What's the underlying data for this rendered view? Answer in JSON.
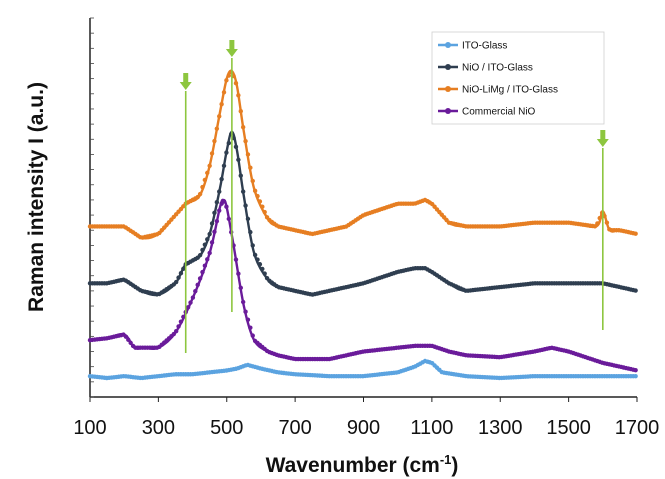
{
  "chart_data": {
    "type": "line",
    "title": "",
    "xlabel": "Wavenumber (cm",
    "xlabel_sup": "-1",
    "xlabel_close": ")",
    "ylabel": "Raman intensity I (a.u.)",
    "xlim": [
      100,
      1700
    ],
    "ylim": [
      0,
      100
    ],
    "x_ticks": [
      100,
      300,
      500,
      700,
      900,
      1100,
      1300,
      1500,
      1700
    ],
    "y_tick_labels_shown": false,
    "grid": false,
    "legend_position": "top-right",
    "series": [
      {
        "name": "ITO-Glass",
        "color": "#5ba3e0",
        "marker": "circle",
        "x": [
          100,
          150,
          200,
          250,
          300,
          350,
          400,
          450,
          500,
          530,
          560,
          600,
          650,
          700,
          800,
          900,
          1000,
          1050,
          1080,
          1100,
          1130,
          1200,
          1300,
          1400,
          1500,
          1600,
          1700
        ],
        "y": [
          5.5,
          5,
          5.5,
          5,
          5.5,
          6,
          6,
          6.5,
          7,
          7.5,
          8.5,
          7.5,
          6.5,
          6,
          5.5,
          5.5,
          6.5,
          8,
          9.5,
          9,
          6.5,
          5.5,
          5,
          5.5,
          5.5,
          5.5,
          5.5
        ]
      },
      {
        "name": "NiO / ITO-Glass",
        "color": "#2f3e50",
        "marker": "circle",
        "x": [
          100,
          150,
          200,
          250,
          300,
          350,
          380,
          420,
          450,
          480,
          500,
          515,
          530,
          550,
          580,
          620,
          650,
          700,
          750,
          800,
          900,
          1000,
          1050,
          1080,
          1100,
          1150,
          1200,
          1300,
          1400,
          1500,
          1600,
          1700
        ],
        "y": [
          30,
          30,
          31,
          28,
          27,
          30,
          35,
          37,
          43,
          55,
          65,
          70,
          65,
          53,
          38,
          31,
          29,
          28,
          27,
          28,
          30,
          33,
          34,
          34,
          33,
          30,
          28,
          29,
          30,
          30,
          30,
          28
        ]
      },
      {
        "name": "NiO-LiMg / ITO-Glass",
        "color": "#e67e22",
        "marker": "circle",
        "x": [
          100,
          150,
          200,
          250,
          300,
          350,
          380,
          420,
          450,
          480,
          500,
          515,
          530,
          550,
          580,
          620,
          650,
          700,
          750,
          800,
          850,
          900,
          1000,
          1050,
          1080,
          1100,
          1150,
          1200,
          1300,
          1400,
          1500,
          1580,
          1600,
          1620,
          1650,
          1700
        ],
        "y": [
          45,
          45,
          45,
          42,
          43,
          48,
          51,
          53,
          61,
          75,
          84,
          86,
          82,
          70,
          55,
          47,
          45,
          44,
          43,
          44,
          45,
          48,
          51,
          51,
          52,
          51,
          46,
          45,
          45,
          46,
          46,
          45,
          49,
          44,
          44,
          43
        ]
      },
      {
        "name": "Commercial NiO",
        "color": "#6a1b9a",
        "marker": "circle",
        "x": [
          100,
          150,
          200,
          230,
          260,
          300,
          350,
          400,
          450,
          480,
          490,
          500,
          520,
          550,
          580,
          620,
          650,
          700,
          750,
          800,
          850,
          900,
          1000,
          1050,
          1100,
          1150,
          1200,
          1300,
          1400,
          1450,
          1500,
          1600,
          1700
        ],
        "y": [
          15,
          15.5,
          16.5,
          13,
          13,
          13,
          17,
          26,
          38,
          50,
          52,
          50,
          40,
          24,
          15,
          12,
          11,
          10,
          10,
          10,
          11,
          12,
          13,
          13.5,
          13.5,
          12,
          11,
          10.5,
          12,
          13,
          12,
          9,
          7
        ]
      }
    ],
    "annotations": [
      {
        "type": "vertical-line-with-arrow",
        "x": 380,
        "color": "#8dc63f"
      },
      {
        "type": "vertical-line-with-arrow",
        "x": 515,
        "color": "#8dc63f"
      },
      {
        "type": "vertical-line-with-arrow",
        "x": 1600,
        "color": "#8dc63f"
      }
    ]
  }
}
